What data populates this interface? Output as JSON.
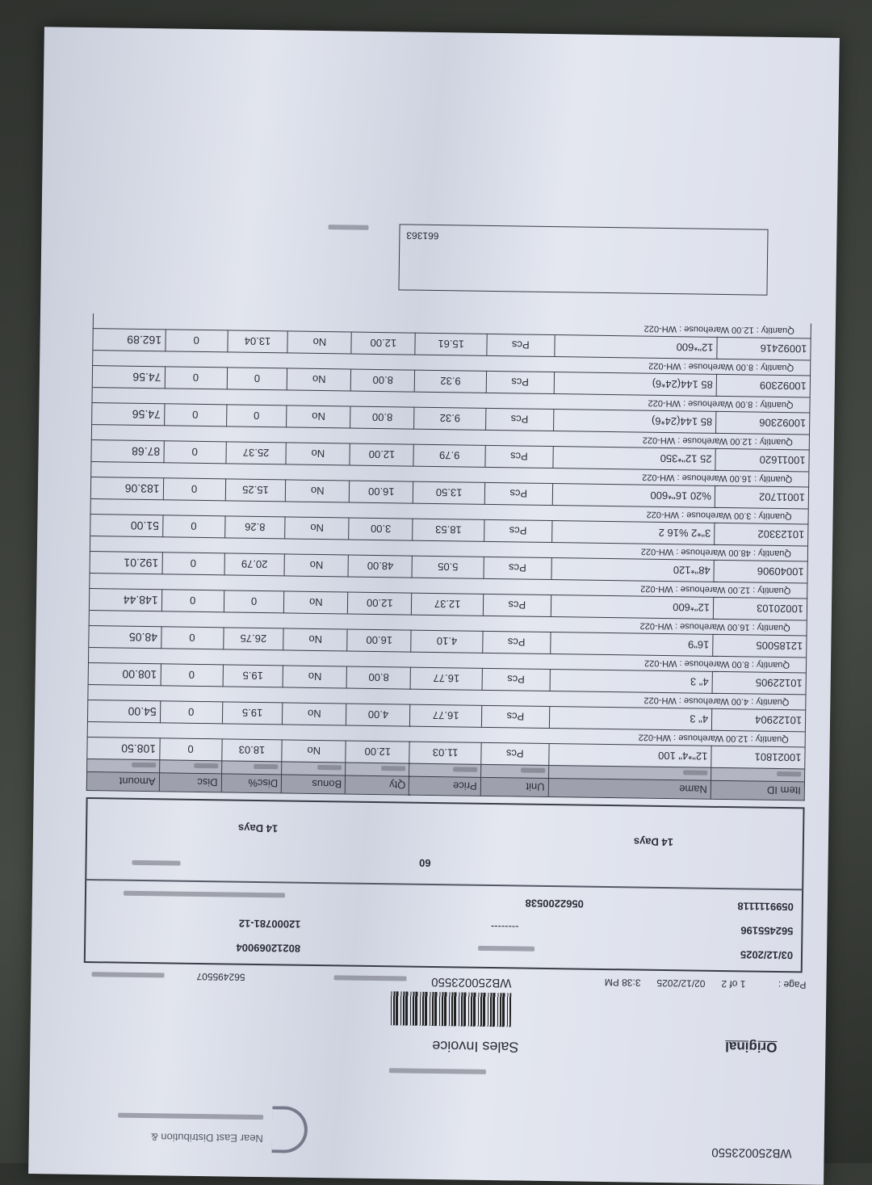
{
  "document": {
    "doc_number": "WB250023550",
    "company_name_en": "Near East Distribution &",
    "original_label": "Original",
    "title": "Sales Invoice",
    "header": {
      "page_label": "Page :",
      "page_value": "1 of 2",
      "date": "02/12/2025",
      "time": "3:38 PM",
      "invoice_no": "WB250023550",
      "customer_code": "562495507"
    },
    "info": {
      "date": "03/12/2025",
      "field_562": "562455196",
      "phone1": "0599111118",
      "phone2": "0562200538",
      "dashes": "--------",
      "account": "12000781-12",
      "vat": "80212069004",
      "credit_days": "14 Days",
      "payment_days": "14 Days",
      "limit": "60"
    },
    "comment_value": "661363"
  },
  "table": {
    "headers": [
      "Item ID",
      "Name",
      "Unit",
      "Price",
      "Qty",
      "Bonus",
      "Disc%",
      "Disc",
      "Amount"
    ],
    "rows": [
      {
        "id": "10021801",
        "name": "12\"*4\" 100",
        "unit": "Pcs",
        "price": "11.03",
        "qty": "12.00",
        "bonus": "No",
        "discp": "18.03",
        "disc": "0",
        "amount": "108.50",
        "detail": "Quantity : 12.00 Warehouse : WH-022"
      },
      {
        "id": "10122904",
        "name": "4\" 3",
        "unit": "Pcs",
        "price": "16.77",
        "qty": "4.00",
        "bonus": "No",
        "discp": "19.5",
        "disc": "0",
        "amount": "54.00",
        "detail": "Quantity : 4.00 Warehouse : WH-022"
      },
      {
        "id": "10122905",
        "name": "4\" 3",
        "unit": "Pcs",
        "price": "16.77",
        "qty": "8.00",
        "bonus": "No",
        "discp": "19.5",
        "disc": "0",
        "amount": "108.00",
        "detail": "Quantity : 8.00 Warehouse : WH-022"
      },
      {
        "id": "12185005",
        "name": "16\"9",
        "unit": "Pcs",
        "price": "4.10",
        "qty": "16.00",
        "bonus": "No",
        "discp": "26.75",
        "disc": "0",
        "amount": "48.05",
        "detail": "Quantity : 16.00 Warehouse : WH-022"
      },
      {
        "id": "10020103",
        "name": "12\"*600",
        "unit": "Pcs",
        "price": "12.37",
        "qty": "12.00",
        "bonus": "No",
        "discp": "0",
        "disc": "0",
        "amount": "148.44",
        "detail": "Quantity : 12.00 Warehouse : WH-022"
      },
      {
        "id": "10040906",
        "name": "48\"*120",
        "unit": "Pcs",
        "price": "5.05",
        "qty": "48.00",
        "bonus": "No",
        "discp": "20.79",
        "disc": "0",
        "amount": "192.01",
        "detail": "Quantity : 48.00 Warehouse : WH-022"
      },
      {
        "id": "10123302",
        "name": "3\"*2 %16 2",
        "unit": "Pcs",
        "price": "18.53",
        "qty": "3.00",
        "bonus": "No",
        "discp": "8.26",
        "disc": "0",
        "amount": "51.00",
        "detail": "Quantity : 3.00 Warehouse : WH-022"
      },
      {
        "id": "10011702",
        "name": "%20 16\"*600",
        "unit": "Pcs",
        "price": "13.50",
        "qty": "16.00",
        "bonus": "No",
        "discp": "15.25",
        "disc": "0",
        "amount": "183.06",
        "detail": "Quantity : 16.00 Warehouse : WH-022"
      },
      {
        "id": "10011620",
        "name": "25 12\"*350",
        "unit": "Pcs",
        "price": "9.79",
        "qty": "12.00",
        "bonus": "No",
        "discp": "25.37",
        "disc": "0",
        "amount": "87.68",
        "detail": "Quantity : 12.00 Warehouse : WH-022"
      },
      {
        "id": "10092306",
        "name": "85 144(24*6)",
        "unit": "Pcs",
        "price": "9.32",
        "qty": "8.00",
        "bonus": "No",
        "discp": "0",
        "disc": "0",
        "amount": "74.56",
        "detail": "Quantity : 8.00 Warehouse : WH-022"
      },
      {
        "id": "10092309",
        "name": "85 144(24*6)",
        "unit": "Pcs",
        "price": "9.32",
        "qty": "8.00",
        "bonus": "No",
        "discp": "0",
        "disc": "0",
        "amount": "74.56",
        "detail": "Quantity : 8.00 Warehouse : WH-022"
      },
      {
        "id": "10092416",
        "name": "12\"*600",
        "unit": "Pcs",
        "price": "15.61",
        "qty": "12.00",
        "bonus": "No",
        "discp": "13.04",
        "disc": "0",
        "amount": "162.89",
        "detail": "Quantity : 12.00 Warehouse : WH-022"
      }
    ]
  }
}
